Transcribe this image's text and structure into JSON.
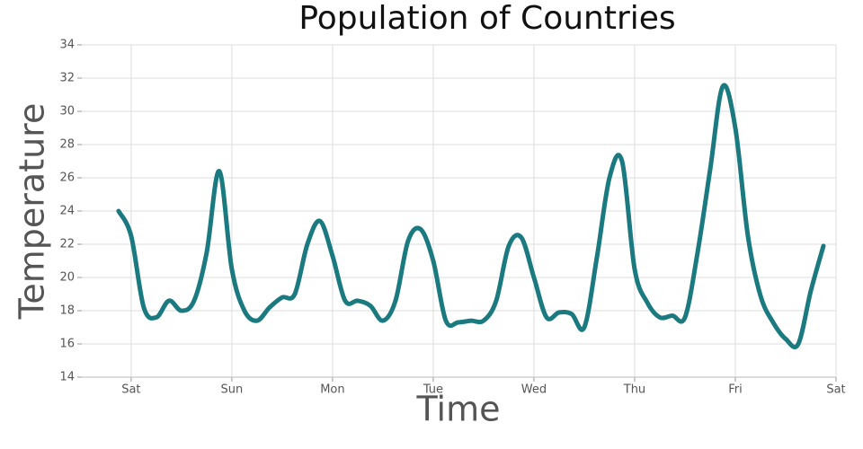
{
  "chart_data": {
    "type": "line",
    "title": "Population of Countries",
    "x_label": "Time",
    "y_label": "Temperature",
    "x": [
      -0.125,
      0,
      0.125,
      0.25,
      0.375,
      0.5,
      0.625,
      0.75,
      0.875,
      1,
      1.125,
      1.25,
      1.375,
      1.5,
      1.625,
      1.75,
      1.875,
      2,
      2.125,
      2.25,
      2.375,
      2.5,
      2.625,
      2.75,
      2.875,
      3,
      3.125,
      3.25,
      3.375,
      3.5,
      3.625,
      3.75,
      3.875,
      4,
      4.125,
      4.25,
      4.375,
      4.5,
      4.625,
      4.75,
      4.875,
      5,
      5.125,
      5.25,
      5.375,
      5.5,
      5.625,
      5.75,
      5.875,
      6,
      6.125,
      6.25,
      6.375,
      6.5,
      6.625,
      6.75,
      6.875
    ],
    "series": [
      {
        "name": "Temperature",
        "color": "#1a7a7f",
        "values": [
          24.0,
          22.5,
          18.2,
          17.6,
          18.6,
          18.0,
          18.6,
          21.5,
          26.4,
          20.5,
          18.0,
          17.4,
          18.2,
          18.8,
          19.0,
          22.0,
          23.4,
          21.3,
          18.6,
          18.6,
          18.3,
          17.4,
          18.6,
          22.2,
          22.9,
          21.0,
          17.4,
          17.3,
          17.4,
          17.4,
          18.6,
          21.9,
          22.4,
          20.0,
          17.6,
          17.9,
          17.8,
          17.0,
          21.2,
          26.0,
          27.0,
          20.5,
          18.5,
          17.6,
          17.7,
          17.6,
          21.5,
          26.5,
          31.5,
          29.0,
          22.5,
          18.9,
          17.3,
          16.3,
          16.0,
          19.2,
          21.9
        ]
      }
    ],
    "xlim": [
      -0.49,
      7
    ],
    "xticks": [
      {
        "value": 0,
        "label": "Sat"
      },
      {
        "value": 1,
        "label": "Sun"
      },
      {
        "value": 2,
        "label": "Mon"
      },
      {
        "value": 3,
        "label": "Tue"
      },
      {
        "value": 4,
        "label": "Wed"
      },
      {
        "value": 5,
        "label": "Thu"
      },
      {
        "value": 6,
        "label": "Fri"
      },
      {
        "value": 7,
        "label": "Sat"
      }
    ],
    "ylim": [
      14,
      34
    ],
    "yticks": [
      14,
      16,
      18,
      20,
      22,
      24,
      26,
      28,
      30,
      32,
      34
    ],
    "grid": true
  }
}
